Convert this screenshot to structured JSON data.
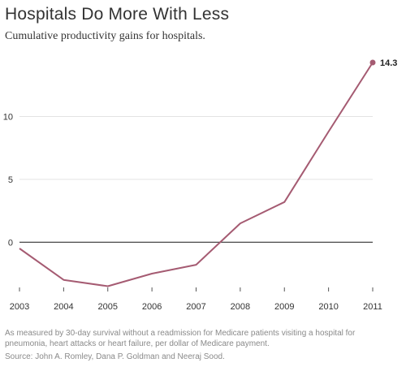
{
  "title": "Hospitals Do More With Less",
  "subtitle": "Cumulative productivity gains for hospitals.",
  "note": "As measured by 30-day survival without a readmission for Medicare patients visiting a hospital for pneumonia, heart attacks or heart failure, per dollar of Medicare payment.",
  "source": "Source: John A. Romley, Dana P. Goldman and Neeraj Sood.",
  "chart_data": {
    "type": "line",
    "x": [
      "2003",
      "2004",
      "2005",
      "2006",
      "2007",
      "2008",
      "2009",
      "2010",
      "2011"
    ],
    "series": [
      {
        "values": [
          -0.5,
          -3.0,
          -3.5,
          -2.5,
          -1.8,
          1.5,
          3.2,
          8.8,
          14.3
        ]
      }
    ],
    "ylim": [
      -3.6,
      14.3
    ],
    "yticks": [
      0,
      5,
      10
    ],
    "grid": true,
    "line_color": "#a55b72",
    "zero_line_color": "#333333",
    "grid_color": "#e3e3e3",
    "end_label": "14.3"
  }
}
